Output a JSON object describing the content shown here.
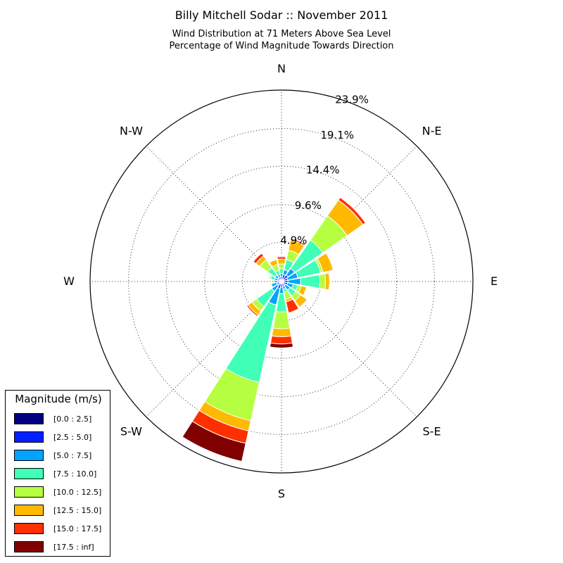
{
  "chart_data": {
    "type": "windrose",
    "title": "Billy Mitchell Sodar :: November 2011",
    "subtitle_lines": [
      "Wind Distribution at 71 Meters Above Sea Level",
      "Percentage of Wind Magnitude Towards Direction"
    ],
    "direction_labels": [
      {
        "label": "N",
        "angle": 0
      },
      {
        "label": "N-E",
        "angle": 45
      },
      {
        "label": "E",
        "angle": 90
      },
      {
        "label": "S-E",
        "angle": 135
      },
      {
        "label": "S",
        "angle": 180
      },
      {
        "label": "S-W",
        "angle": 225
      },
      {
        "label": "W",
        "angle": 270
      },
      {
        "label": "N-W",
        "angle": 315
      }
    ],
    "radial_ticks": [
      4.9,
      9.6,
      14.4,
      19.1,
      23.9
    ],
    "radial_tick_labels": [
      "4.9%",
      "9.6%",
      "14.4%",
      "19.1%",
      "23.9%"
    ],
    "rmax": 23.9,
    "legend": {
      "title": "Magnitude (m/s)",
      "bins": [
        {
          "label": "[0.0 : 2.5]",
          "color": "#000080"
        },
        {
          "label": "[2.5 : 5.0]",
          "color": "#0020ff"
        },
        {
          "label": "[5.0 : 7.5]",
          "color": "#00a4ff"
        },
        {
          "label": "[7.5 : 10.0]",
          "color": "#40ffb6"
        },
        {
          "label": "[10.0 : 12.5]",
          "color": "#b6ff40"
        },
        {
          "label": "[12.5 : 15.0]",
          "color": "#ffb900"
        },
        {
          "label": "[15.0 : 17.5]",
          "color": "#ff3000"
        },
        {
          "label": "[17.5 : inf]",
          "color": "#800000"
        }
      ]
    },
    "sector_width_deg": 22.5,
    "sectors": [
      {
        "direction": 0,
        "cumulative": [
          0.2,
          0.6,
          1.0,
          1.6,
          2.2,
          2.8,
          3.1,
          3.2
        ]
      },
      {
        "direction": 22.5,
        "cumulative": [
          0.2,
          0.9,
          1.5,
          2.8,
          4.0,
          5.3,
          5.5,
          5.5
        ]
      },
      {
        "direction": 45,
        "cumulative": [
          0.3,
          1.0,
          2.0,
          6.3,
          10.0,
          12.4,
          12.8,
          12.8
        ]
      },
      {
        "direction": 67.5,
        "cumulative": [
          0.3,
          0.8,
          2.1,
          5.0,
          5.3,
          6.6,
          6.6,
          6.6
        ]
      },
      {
        "direction": 90,
        "cumulative": [
          0.3,
          0.8,
          2.4,
          4.8,
          5.5,
          6.0,
          6.0,
          6.0
        ]
      },
      {
        "direction": 112.5,
        "cumulative": [
          0.3,
          0.8,
          1.5,
          2.1,
          2.5,
          3.2,
          3.2,
          3.2
        ]
      },
      {
        "direction": 135,
        "cumulative": [
          0.3,
          0.6,
          1.3,
          2.2,
          2.9,
          3.9,
          4.0,
          4.0
        ]
      },
      {
        "direction": 157.5,
        "cumulative": [
          0.2,
          0.6,
          1.0,
          1.4,
          2.3,
          2.6,
          4.0,
          4.0
        ]
      },
      {
        "direction": 180,
        "cumulative": [
          0.2,
          0.7,
          1.5,
          3.8,
          5.9,
          6.9,
          7.8,
          8.3
        ]
      },
      {
        "direction": 202.5,
        "cumulative": [
          0.2,
          0.9,
          3.0,
          12.9,
          17.8,
          19.1,
          20.7,
          23.0
        ]
      },
      {
        "direction": 225,
        "cumulative": [
          0.2,
          0.6,
          1.5,
          3.8,
          4.5,
          5.1,
          5.3,
          5.3
        ]
      },
      {
        "direction": 247.5,
        "cumulative": [
          0.2,
          0.6,
          1.3,
          1.4,
          1.4,
          1.5,
          1.5,
          1.5
        ]
      },
      {
        "direction": 270,
        "cumulative": [
          0.2,
          0.5,
          0.9,
          1.0,
          1.0,
          1.0,
          1.0,
          1.0
        ]
      },
      {
        "direction": 292.5,
        "cumulative": [
          0.2,
          0.5,
          0.9,
          1.4,
          1.6,
          1.7,
          1.7,
          1.7
        ]
      },
      {
        "direction": 315,
        "cumulative": [
          0.2,
          0.6,
          1.0,
          2.1,
          3.3,
          3.9,
          4.3,
          4.3
        ]
      },
      {
        "direction": 337.5,
        "cumulative": [
          0.2,
          0.6,
          0.9,
          1.4,
          2.2,
          2.8,
          2.8,
          2.8
        ]
      }
    ]
  }
}
